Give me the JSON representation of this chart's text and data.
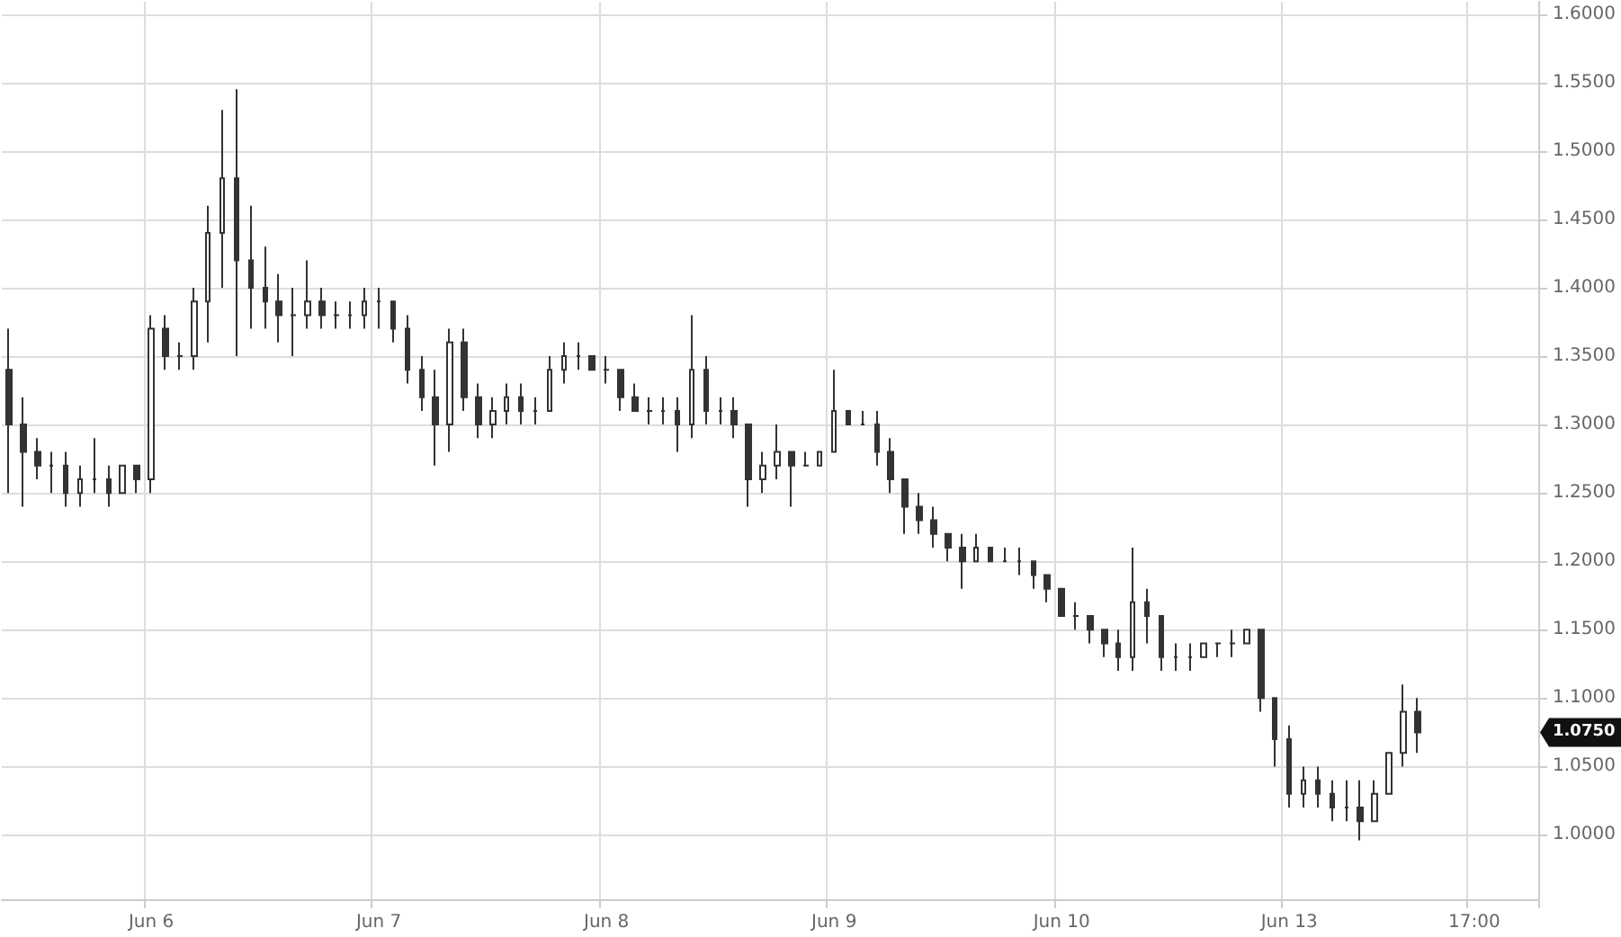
{
  "chart_data": {
    "type": "candlestick",
    "color": "#333333",
    "categories": [
      null,
      null,
      null,
      null,
      null,
      null,
      null,
      null,
      null,
      null,
      "Jun 6",
      null,
      null,
      null,
      null,
      null,
      null,
      null,
      null,
      null,
      null,
      null,
      null,
      null,
      null,
      null,
      "Jun 7",
      null,
      null,
      null,
      null,
      null,
      null,
      null,
      null,
      null,
      null,
      null,
      null,
      null,
      null,
      null,
      "Jun 8",
      null,
      null,
      null,
      null,
      null,
      null,
      null,
      null,
      null,
      null,
      null,
      null,
      null,
      null,
      null,
      "Jun 9",
      null,
      null,
      null,
      null,
      null,
      null,
      null,
      null,
      null,
      null,
      null,
      null,
      null,
      null,
      null,
      "Jun 10",
      null,
      null,
      null,
      null,
      null,
      null,
      null,
      null,
      null,
      null,
      null,
      null,
      null,
      null,
      null,
      "Jun 13",
      null,
      null,
      null,
      null,
      null,
      null,
      null,
      null,
      null,
      null,
      null,
      null,
      "17:00",
      null,
      null,
      null,
      null
    ],
    "ohlc": [
      [
        1.34,
        1.37,
        1.25,
        1.3
      ],
      [
        1.3,
        1.32,
        1.24,
        1.28
      ],
      [
        1.28,
        1.29,
        1.26,
        1.27
      ],
      [
        1.27,
        1.28,
        1.25,
        1.27
      ],
      [
        1.27,
        1.28,
        1.24,
        1.25
      ],
      [
        1.25,
        1.27,
        1.24,
        1.26
      ],
      [
        1.26,
        1.29,
        1.25,
        1.26
      ],
      [
        1.26,
        1.27,
        1.24,
        1.25
      ],
      [
        1.25,
        1.27,
        1.25,
        1.27
      ],
      [
        1.27,
        1.27,
        1.25,
        1.26
      ],
      [
        1.26,
        1.38,
        1.25,
        1.37
      ],
      [
        1.37,
        1.38,
        1.34,
        1.35
      ],
      [
        1.35,
        1.36,
        1.34,
        1.35
      ],
      [
        1.35,
        1.4,
        1.34,
        1.39
      ],
      [
        1.39,
        1.46,
        1.36,
        1.44
      ],
      [
        1.44,
        1.53,
        1.4,
        1.48
      ],
      [
        1.48,
        1.545,
        1.35,
        1.42
      ],
      [
        1.42,
        1.46,
        1.37,
        1.4
      ],
      [
        1.4,
        1.43,
        1.37,
        1.39
      ],
      [
        1.39,
        1.41,
        1.36,
        1.38
      ],
      [
        1.38,
        1.4,
        1.35,
        1.38
      ],
      [
        1.38,
        1.42,
        1.37,
        1.39
      ],
      [
        1.39,
        1.4,
        1.37,
        1.38
      ],
      [
        1.38,
        1.39,
        1.37,
        1.38
      ],
      [
        1.38,
        1.39,
        1.37,
        1.38
      ],
      [
        1.38,
        1.4,
        1.37,
        1.39
      ],
      [
        1.39,
        1.4,
        1.37,
        1.39
      ],
      [
        1.39,
        1.39,
        1.36,
        1.37
      ],
      [
        1.37,
        1.38,
        1.33,
        1.34
      ],
      [
        1.34,
        1.35,
        1.31,
        1.32
      ],
      [
        1.32,
        1.34,
        1.27,
        1.3
      ],
      [
        1.3,
        1.37,
        1.28,
        1.36
      ],
      [
        1.36,
        1.37,
        1.31,
        1.32
      ],
      [
        1.32,
        1.33,
        1.29,
        1.3
      ],
      [
        1.3,
        1.32,
        1.29,
        1.31
      ],
      [
        1.31,
        1.33,
        1.3,
        1.32
      ],
      [
        1.32,
        1.33,
        1.3,
        1.31
      ],
      [
        1.31,
        1.32,
        1.3,
        1.31
      ],
      [
        1.31,
        1.35,
        1.31,
        1.34
      ],
      [
        1.34,
        1.36,
        1.33,
        1.35
      ],
      [
        1.35,
        1.36,
        1.34,
        1.35
      ],
      [
        1.35,
        1.35,
        1.34,
        1.34
      ],
      [
        1.34,
        1.35,
        1.33,
        1.34
      ],
      [
        1.34,
        1.34,
        1.31,
        1.32
      ],
      [
        1.32,
        1.33,
        1.31,
        1.31
      ],
      [
        1.31,
        1.32,
        1.3,
        1.31
      ],
      [
        1.31,
        1.32,
        1.3,
        1.31
      ],
      [
        1.31,
        1.32,
        1.28,
        1.3
      ],
      [
        1.3,
        1.38,
        1.29,
        1.34
      ],
      [
        1.34,
        1.35,
        1.3,
        1.31
      ],
      [
        1.31,
        1.32,
        1.3,
        1.31
      ],
      [
        1.31,
        1.32,
        1.29,
        1.3
      ],
      [
        1.3,
        1.3,
        1.24,
        1.26
      ],
      [
        1.26,
        1.28,
        1.25,
        1.27
      ],
      [
        1.27,
        1.3,
        1.26,
        1.28
      ],
      [
        1.28,
        1.28,
        1.24,
        1.27
      ],
      [
        1.27,
        1.28,
        1.27,
        1.27
      ],
      [
        1.27,
        1.28,
        1.27,
        1.28
      ],
      [
        1.28,
        1.34,
        1.28,
        1.31
      ],
      [
        1.31,
        1.31,
        1.3,
        1.3
      ],
      [
        1.3,
        1.31,
        1.3,
        1.3
      ],
      [
        1.3,
        1.31,
        1.27,
        1.28
      ],
      [
        1.28,
        1.29,
        1.25,
        1.26
      ],
      [
        1.26,
        1.26,
        1.22,
        1.24
      ],
      [
        1.24,
        1.25,
        1.22,
        1.23
      ],
      [
        1.23,
        1.24,
        1.21,
        1.22
      ],
      [
        1.22,
        1.22,
        1.2,
        1.21
      ],
      [
        1.21,
        1.22,
        1.18,
        1.2
      ],
      [
        1.2,
        1.22,
        1.2,
        1.21
      ],
      [
        1.21,
        1.21,
        1.2,
        1.2
      ],
      [
        1.2,
        1.21,
        1.2,
        1.2
      ],
      [
        1.2,
        1.21,
        1.19,
        1.2
      ],
      [
        1.2,
        1.2,
        1.18,
        1.19
      ],
      [
        1.19,
        1.19,
        1.17,
        1.18
      ],
      [
        1.18,
        1.18,
        1.16,
        1.16
      ],
      [
        1.16,
        1.17,
        1.15,
        1.16
      ],
      [
        1.16,
        1.16,
        1.14,
        1.15
      ],
      [
        1.15,
        1.15,
        1.13,
        1.14
      ],
      [
        1.14,
        1.15,
        1.12,
        1.13
      ],
      [
        1.13,
        1.21,
        1.12,
        1.17
      ],
      [
        1.17,
        1.18,
        1.14,
        1.16
      ],
      [
        1.16,
        1.16,
        1.12,
        1.13
      ],
      [
        1.13,
        1.14,
        1.12,
        1.13
      ],
      [
        1.13,
        1.14,
        1.12,
        1.13
      ],
      [
        1.13,
        1.14,
        1.13,
        1.14
      ],
      [
        1.14,
        1.14,
        1.13,
        1.14
      ],
      [
        1.14,
        1.15,
        1.13,
        1.14
      ],
      [
        1.14,
        1.15,
        1.14,
        1.15
      ],
      [
        1.15,
        1.15,
        1.09,
        1.1
      ],
      [
        1.1,
        1.1,
        1.05,
        1.07
      ],
      [
        1.07,
        1.08,
        1.02,
        1.03
      ],
      [
        1.03,
        1.05,
        1.02,
        1.04
      ],
      [
        1.04,
        1.05,
        1.02,
        1.03
      ],
      [
        1.03,
        1.04,
        1.01,
        1.02
      ],
      [
        1.02,
        1.04,
        1.01,
        1.02
      ],
      [
        1.02,
        1.04,
        0.996,
        1.01
      ],
      [
        1.01,
        1.04,
        1.01,
        1.03
      ],
      [
        1.03,
        1.06,
        1.03,
        1.06
      ],
      [
        1.06,
        1.11,
        1.05,
        1.09
      ],
      [
        1.09,
        1.1,
        1.06,
        1.075
      ],
      null,
      null,
      null,
      null,
      null,
      null,
      null,
      null
    ],
    "ylim": [
      0.953,
      1.609
    ],
    "yticks": [
      {
        "value": 1.0,
        "label": "1.0000"
      },
      {
        "value": 1.05,
        "label": "1.0500"
      },
      {
        "value": 1.1,
        "label": "1.1000"
      },
      {
        "value": 1.15,
        "label": "1.1500"
      },
      {
        "value": 1.2,
        "label": "1.2000"
      },
      {
        "value": 1.25,
        "label": "1.2500"
      },
      {
        "value": 1.3,
        "label": "1.3000"
      },
      {
        "value": 1.35,
        "label": "1.3500"
      },
      {
        "value": 1.4,
        "label": "1.4000"
      },
      {
        "value": 1.45,
        "label": "1.4500"
      },
      {
        "value": 1.5,
        "label": "1.5000"
      },
      {
        "value": 1.55,
        "label": "1.5500"
      },
      {
        "value": 1.6,
        "label": "1.6000"
      }
    ],
    "grid": true,
    "annotations": [
      "1.0750"
    ]
  }
}
